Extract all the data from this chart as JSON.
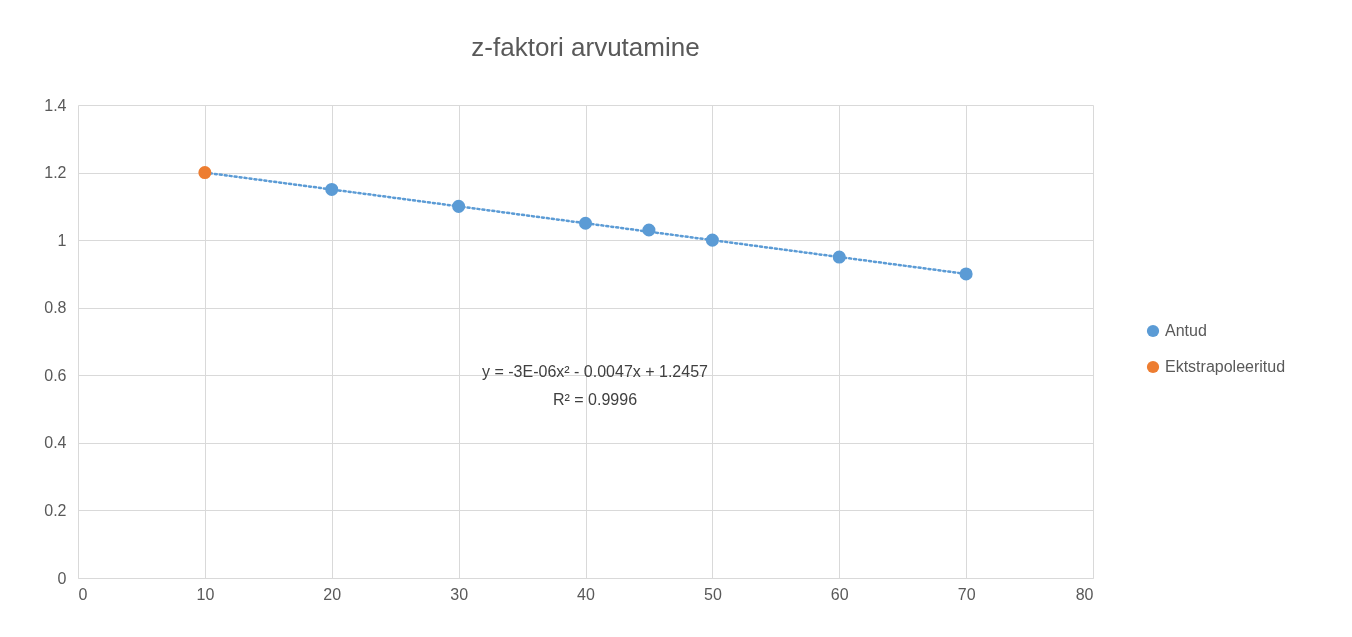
{
  "chart_data": {
    "type": "scatter",
    "title": "z-faktori arvutamine",
    "xlim": [
      0,
      80
    ],
    "xticks": [
      0,
      10,
      20,
      30,
      40,
      50,
      60,
      70,
      80
    ],
    "ylim": [
      0,
      1.4
    ],
    "yticks": [
      0,
      0.2,
      0.4,
      0.6,
      0.8,
      1,
      1.2,
      1.4
    ],
    "grid": true,
    "legend": "right",
    "marker": "circle",
    "series": [
      {
        "type": "line",
        "color": "#5b9bd5",
        "line_style": "dotted",
        "marker": "none",
        "x": [
          10,
          20,
          30,
          40,
          50,
          60,
          70
        ],
        "values": [
          1.2,
          1.15,
          1.1,
          1.05,
          1.0,
          0.95,
          0.9
        ]
      },
      {
        "name": "Antud",
        "color": "#5b9bd5",
        "x": [
          20,
          30,
          40,
          45,
          50,
          60,
          70
        ],
        "values": [
          1.15,
          1.1,
          1.05,
          1.03,
          1.0,
          0.95,
          0.9
        ]
      },
      {
        "name": "Ektstrapoleeritud",
        "color": "#ed7d31",
        "x": [
          10
        ],
        "values": [
          1.2
        ]
      }
    ],
    "annotations": [
      "y = -3E-06x² - 0.0047x + 1.2457",
      "R² = 0.9996"
    ]
  }
}
